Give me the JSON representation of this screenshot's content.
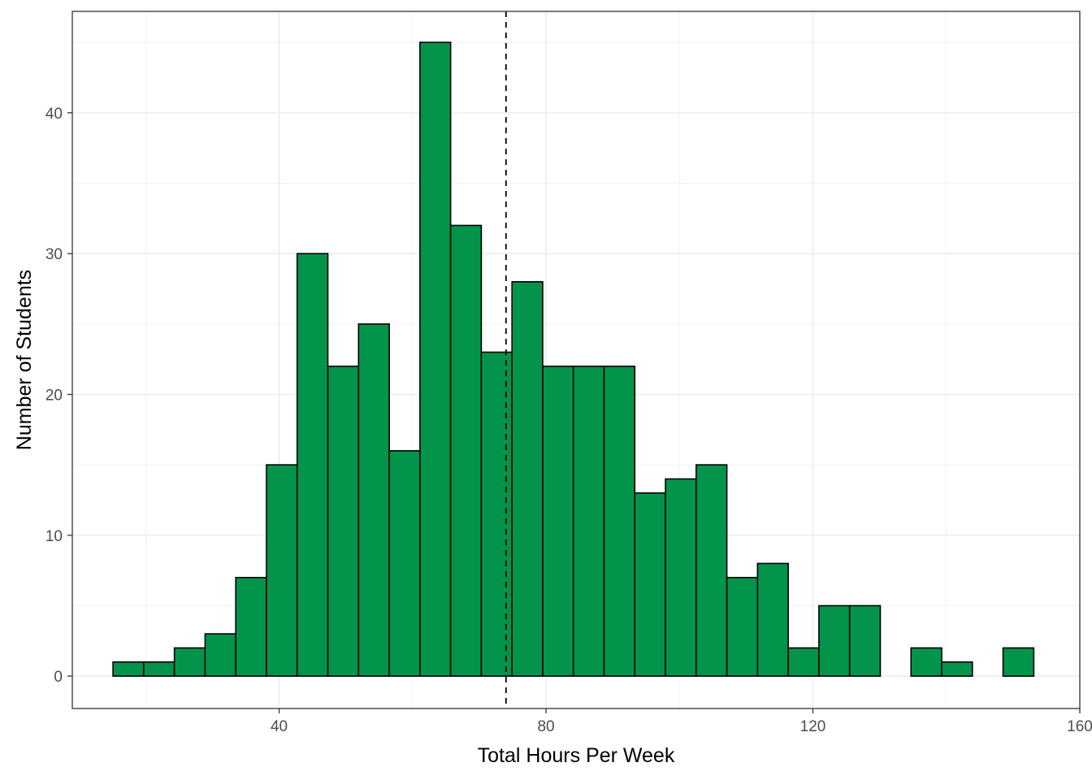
{
  "chart_data": {
    "type": "bar",
    "subtype": "histogram",
    "title": "",
    "xlabel": "Total Hours Per Week",
    "ylabel": "Number of Students",
    "xlim": [
      9,
      160
    ],
    "ylim": [
      -2.3,
      47.2
    ],
    "x_ticks": [
      40,
      80,
      120,
      160
    ],
    "y_ticks": [
      0,
      10,
      20,
      30,
      40
    ],
    "bin_width": 4.6,
    "bin_starts": [
      15.1,
      19.7,
      24.3,
      28.9,
      33.5,
      38.1,
      42.7,
      47.3,
      51.9,
      56.5,
      61.1,
      65.7,
      70.3,
      74.9,
      79.5,
      84.1,
      88.7,
      93.3,
      97.9,
      102.5,
      107.1,
      111.7,
      116.3,
      120.9,
      125.5,
      130.1,
      134.7,
      139.3,
      143.9,
      148.5
    ],
    "values": [
      1,
      1,
      2,
      3,
      7,
      15,
      30,
      22,
      25,
      16,
      45,
      32,
      23,
      28,
      22,
      22,
      22,
      13,
      14,
      15,
      7,
      8,
      2,
      5,
      5,
      0,
      2,
      1,
      0,
      2
    ],
    "vline": {
      "x": 74.0,
      "style": "dashed"
    },
    "bar_fill": "#03944c",
    "bar_stroke": "#000000",
    "grid": true,
    "theme": "bw"
  }
}
